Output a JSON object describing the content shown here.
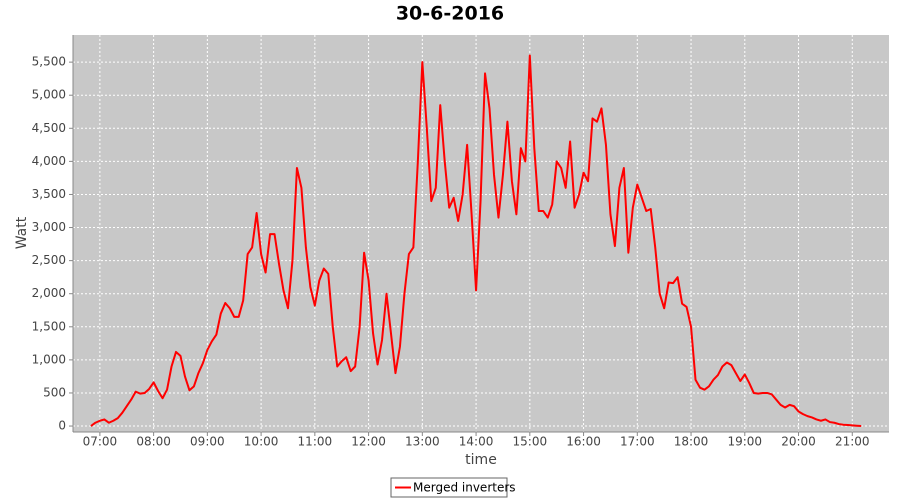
{
  "chart_data": {
    "type": "line",
    "title": "30-6-2016",
    "x_label": "time",
    "y_label": "Watt",
    "x": [
      "06:50",
      "06:55",
      "07:00",
      "07:05",
      "07:10",
      "07:15",
      "07:20",
      "07:25",
      "07:30",
      "07:35",
      "07:40",
      "07:45",
      "07:50",
      "07:55",
      "08:00",
      "08:05",
      "08:10",
      "08:15",
      "08:20",
      "08:25",
      "08:30",
      "08:35",
      "08:40",
      "08:45",
      "08:50",
      "08:55",
      "09:00",
      "09:05",
      "09:10",
      "09:15",
      "09:20",
      "09:25",
      "09:30",
      "09:35",
      "09:40",
      "09:45",
      "09:50",
      "09:55",
      "10:00",
      "10:05",
      "10:10",
      "10:15",
      "10:20",
      "10:25",
      "10:30",
      "10:35",
      "10:40",
      "10:45",
      "10:50",
      "10:55",
      "11:00",
      "11:05",
      "11:10",
      "11:15",
      "11:20",
      "11:25",
      "11:30",
      "11:35",
      "11:40",
      "11:45",
      "11:50",
      "11:55",
      "12:00",
      "12:05",
      "12:10",
      "12:15",
      "12:20",
      "12:25",
      "12:30",
      "12:35",
      "12:40",
      "12:45",
      "12:50",
      "12:55",
      "13:00",
      "13:05",
      "13:10",
      "13:15",
      "13:20",
      "13:25",
      "13:30",
      "13:35",
      "13:40",
      "13:45",
      "13:50",
      "13:55",
      "14:00",
      "14:05",
      "14:10",
      "14:15",
      "14:20",
      "14:25",
      "14:30",
      "14:35",
      "14:40",
      "14:45",
      "14:50",
      "14:55",
      "15:00",
      "15:05",
      "15:10",
      "15:15",
      "15:20",
      "15:25",
      "15:30",
      "15:35",
      "15:40",
      "15:45",
      "15:50",
      "15:55",
      "16:00",
      "16:05",
      "16:10",
      "16:15",
      "16:20",
      "16:25",
      "16:30",
      "16:35",
      "16:40",
      "16:45",
      "16:50",
      "16:55",
      "17:00",
      "17:05",
      "17:10",
      "17:15",
      "17:20",
      "17:25",
      "17:30",
      "17:35",
      "17:40",
      "17:45",
      "17:50",
      "17:55",
      "18:00",
      "18:05",
      "18:10",
      "18:15",
      "18:20",
      "18:25",
      "18:30",
      "18:35",
      "18:40",
      "18:45",
      "18:50",
      "18:55",
      "19:00",
      "19:05",
      "19:10",
      "19:15",
      "19:20",
      "19:25",
      "19:30",
      "19:35",
      "19:40",
      "19:45",
      "19:50",
      "19:55",
      "20:00",
      "20:05",
      "20:10",
      "20:15",
      "20:20",
      "20:25",
      "20:30",
      "20:35",
      "20:40",
      "20:45",
      "20:50",
      "20:55",
      "21:00",
      "21:05",
      "21:10"
    ],
    "series": [
      {
        "name": "Merged inverters",
        "color": "#ff0000",
        "values": [
          0,
          50,
          80,
          100,
          50,
          80,
          120,
          200,
          300,
          400,
          520,
          490,
          500,
          560,
          660,
          530,
          420,
          550,
          900,
          1120,
          1060,
          750,
          540,
          600,
          800,
          950,
          1150,
          1280,
          1380,
          1700,
          1860,
          1780,
          1650,
          1650,
          1900,
          2600,
          2700,
          3220,
          2600,
          2320,
          2900,
          2900,
          2450,
          2050,
          1780,
          2500,
          3900,
          3600,
          2700,
          2100,
          1820,
          2200,
          2380,
          2300,
          1500,
          900,
          980,
          1040,
          830,
          900,
          1500,
          2620,
          2200,
          1400,
          930,
          1300,
          2000,
          1400,
          800,
          1200,
          2000,
          2600,
          2700,
          4000,
          5500,
          4500,
          3400,
          3600,
          4850,
          4000,
          3300,
          3450,
          3100,
          3500,
          4250,
          3200,
          2050,
          3400,
          5330,
          4800,
          3800,
          3150,
          3800,
          4600,
          3700,
          3200,
          4200,
          4000,
          5600,
          4200,
          3250,
          3250,
          3150,
          3350,
          4000,
          3900,
          3600,
          4300,
          3300,
          3500,
          3830,
          3700,
          4650,
          4600,
          4800,
          4250,
          3200,
          2720,
          3600,
          3900,
          2620,
          3300,
          3650,
          3450,
          3250,
          3280,
          2700,
          2000,
          1780,
          2170,
          2160,
          2250,
          1850,
          1800,
          1500,
          700,
          580,
          550,
          600,
          700,
          770,
          900,
          960,
          920,
          800,
          680,
          780,
          650,
          500,
          490,
          500,
          500,
          480,
          400,
          320,
          280,
          320,
          300,
          220,
          180,
          150,
          130,
          100,
          80,
          100,
          60,
          50,
          30,
          20,
          15,
          10,
          5,
          0
        ]
      }
    ],
    "xlim": [
      "06:30",
      "21:41"
    ],
    "xticks": [
      "07:00",
      "08:00",
      "09:00",
      "10:00",
      "11:00",
      "12:00",
      "13:00",
      "14:00",
      "15:00",
      "16:00",
      "17:00",
      "18:00",
      "19:00",
      "20:00",
      "21:00"
    ],
    "ylim": [
      -90,
      5910
    ],
    "yticks": [
      0,
      500,
      {
        "value": 1000,
        "label": "1,000"
      },
      {
        "value": 1500,
        "label": "1,500"
      },
      {
        "value": 2000,
        "label": "2,000"
      },
      {
        "value": 2500,
        "label": "2,500"
      },
      {
        "value": 3000,
        "label": "3,000"
      },
      {
        "value": 3500,
        "label": "3,500"
      },
      {
        "value": 4000,
        "label": "4,000"
      },
      {
        "value": 4500,
        "label": "4,500"
      },
      {
        "value": 5000,
        "label": "5,000"
      },
      {
        "value": 5500,
        "label": "5,500"
      }
    ],
    "grid": true,
    "legend": "bottom"
  }
}
